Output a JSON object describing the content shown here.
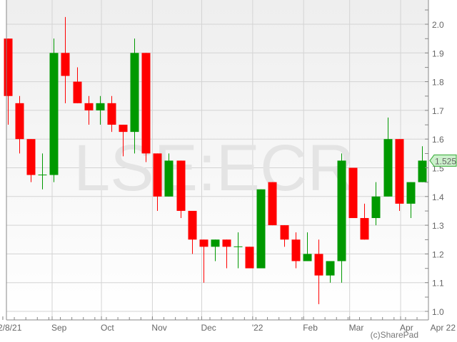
{
  "chart_data": {
    "type": "candlestick",
    "title": "",
    "watermark": "LSE:ECR",
    "credit": "(c)SharePad",
    "interval": "weekly",
    "ylim": [
      0.98,
      2.07
    ],
    "y_ticks": [
      "1.0",
      "1.1",
      "1.2",
      "1.3",
      "1.4",
      "1.5",
      "1.6",
      "1.7",
      "1.8",
      "1.9",
      "2.0"
    ],
    "x_ticks": [
      {
        "label": "2/8/21",
        "date": "2021-08-02"
      },
      {
        "label": "Sep",
        "date": "2021-09-01"
      },
      {
        "label": "Oct",
        "date": "2021-10-01"
      },
      {
        "label": "Nov",
        "date": "2021-11-01"
      },
      {
        "label": "Dec",
        "date": "2021-12-01"
      },
      {
        "label": "'22",
        "date": "2022-01-01"
      },
      {
        "label": "Feb",
        "date": "2022-02-01"
      },
      {
        "label": "Mar",
        "date": "2022-03-01"
      },
      {
        "label": "Apr",
        "date": "2022-04-01"
      }
    ],
    "x_end_label": "Apr 22",
    "last_price": "1.525",
    "grid": true,
    "colors": {
      "up": "#009900",
      "down": "#ff0000",
      "last_price_bg": "#ccf0cc",
      "last_price_border": "#33aa33"
    },
    "start_date": "2021-08-02",
    "candles": [
      {
        "o": 1.95,
        "h": 1.95,
        "l": 1.65,
        "c": 1.75
      },
      {
        "o": 1.725,
        "h": 1.75,
        "l": 1.55,
        "c": 1.6
      },
      {
        "o": 1.6,
        "h": 1.6,
        "l": 1.45,
        "c": 1.475
      },
      {
        "o": 1.475,
        "h": 1.55,
        "l": 1.425,
        "c": 1.475
      },
      {
        "o": 1.475,
        "h": 1.95,
        "l": 1.45,
        "c": 1.9
      },
      {
        "o": 1.9,
        "h": 2.025,
        "l": 1.725,
        "c": 1.82
      },
      {
        "o": 1.8,
        "h": 1.85,
        "l": 1.725,
        "c": 1.725
      },
      {
        "o": 1.725,
        "h": 1.75,
        "l": 1.65,
        "c": 1.7
      },
      {
        "o": 1.7,
        "h": 1.75,
        "l": 1.65,
        "c": 1.725
      },
      {
        "o": 1.725,
        "h": 1.75,
        "l": 1.625,
        "c": 1.65
      },
      {
        "o": 1.65,
        "h": 1.65,
        "l": 1.54,
        "c": 1.625
      },
      {
        "o": 1.625,
        "h": 1.95,
        "l": 1.55,
        "c": 1.9
      },
      {
        "o": 1.9,
        "h": 1.9,
        "l": 1.52,
        "c": 1.55
      },
      {
        "o": 1.55,
        "h": 1.55,
        "l": 1.35,
        "c": 1.4
      },
      {
        "o": 1.4,
        "h": 1.55,
        "l": 1.4,
        "c": 1.525
      },
      {
        "o": 1.525,
        "h": 1.525,
        "l": 1.325,
        "c": 1.35
      },
      {
        "o": 1.35,
        "h": 1.35,
        "l": 1.2,
        "c": 1.25
      },
      {
        "o": 1.25,
        "h": 1.25,
        "l": 1.1,
        "c": 1.225
      },
      {
        "o": 1.225,
        "h": 1.25,
        "l": 1.175,
        "c": 1.25
      },
      {
        "o": 1.25,
        "h": 1.25,
        "l": 1.15,
        "c": 1.225
      },
      {
        "o": 1.225,
        "h": 1.275,
        "l": 1.15,
        "c": 1.225
      },
      {
        "o": 1.225,
        "h": 1.225,
        "l": 1.15,
        "c": 1.15
      },
      {
        "o": 1.15,
        "h": 1.425,
        "l": 1.15,
        "c": 1.425
      },
      {
        "o": 1.45,
        "h": 1.45,
        "l": 1.3,
        "c": 1.3
      },
      {
        "o": 1.3,
        "h": 1.3,
        "l": 1.225,
        "c": 1.25
      },
      {
        "o": 1.25,
        "h": 1.275,
        "l": 1.15,
        "c": 1.175
      },
      {
        "o": 1.175,
        "h": 1.275,
        "l": 1.175,
        "c": 1.2
      },
      {
        "o": 1.2,
        "h": 1.25,
        "l": 1.025,
        "c": 1.125
      },
      {
        "o": 1.125,
        "h": 1.175,
        "l": 1.1,
        "c": 1.175
      },
      {
        "o": 1.175,
        "h": 1.55,
        "l": 1.1,
        "c": 1.525
      },
      {
        "o": 1.5,
        "h": 1.5,
        "l": 1.325,
        "c": 1.325
      },
      {
        "o": 1.325,
        "h": 1.375,
        "l": 1.25,
        "c": 1.25
      },
      {
        "o": 1.325,
        "h": 1.45,
        "l": 1.3,
        "c": 1.4
      },
      {
        "o": 1.4,
        "h": 1.675,
        "l": 1.4,
        "c": 1.6
      },
      {
        "o": 1.6,
        "h": 1.6,
        "l": 1.35,
        "c": 1.375
      },
      {
        "o": 1.375,
        "h": 1.45,
        "l": 1.325,
        "c": 1.45
      },
      {
        "o": 1.45,
        "h": 1.575,
        "l": 1.45,
        "c": 1.525
      }
    ]
  }
}
